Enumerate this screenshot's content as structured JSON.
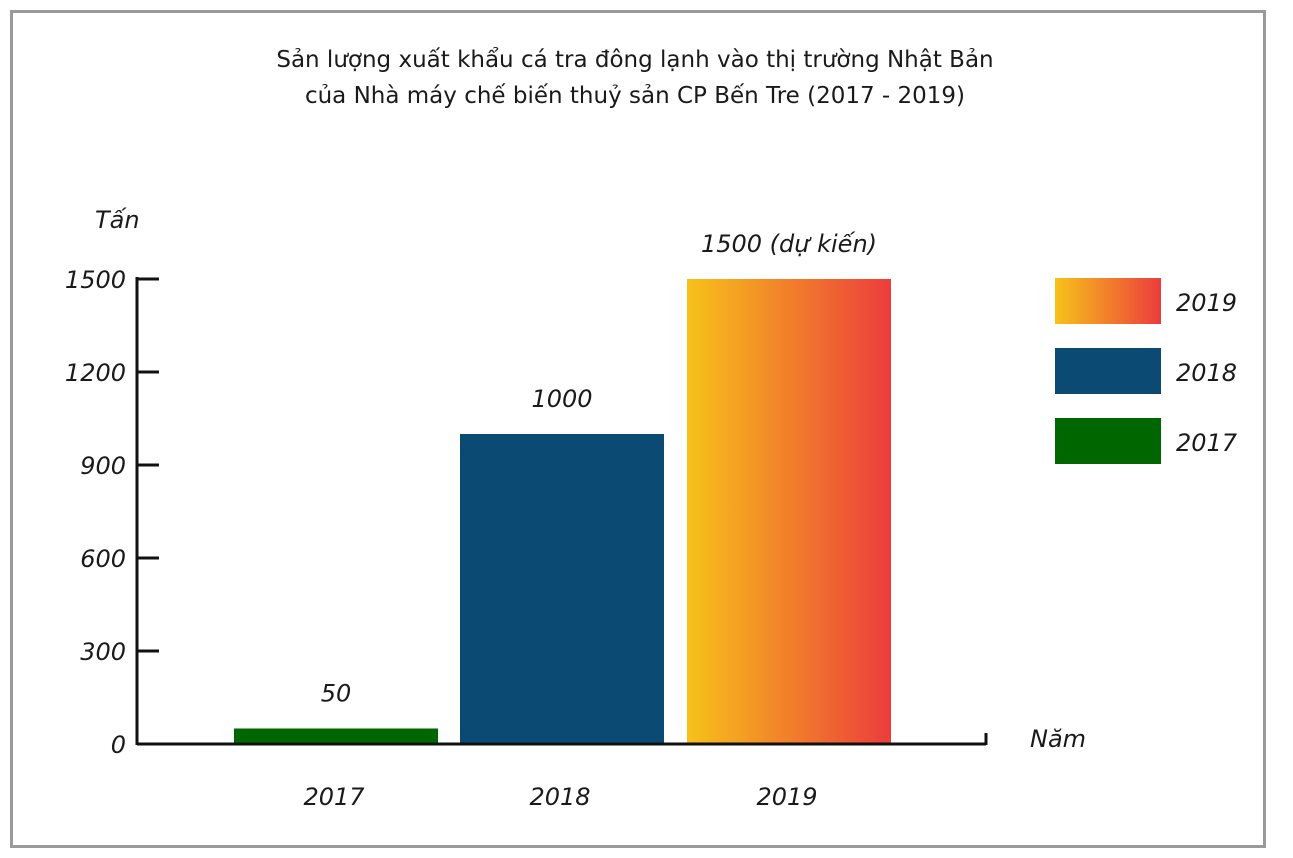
{
  "chart_data": {
    "type": "bar",
    "title": [
      "Sản lượng xuất khẩu cá tra đông lạnh vào thị trường Nhật Bản",
      "của Nhà máy chế biến thuỷ sản CP Bến Tre (2017 - 2019)"
    ],
    "xlabel": "Năm",
    "ylabel": "Tấn",
    "ylim": [
      0,
      1500
    ],
    "yticks": [
      "0",
      "300",
      "600",
      "900",
      "1200",
      "1500"
    ],
    "categories": [
      "2017",
      "2018",
      "2019"
    ],
    "values": [
      50,
      1000,
      1500
    ],
    "data_labels": [
      "50",
      "1000",
      "1500 (dự kiến)"
    ],
    "colors": [
      "#006600",
      "#0a4a73",
      "gradient:#f7c21a-#ec3c3c"
    ],
    "legend": {
      "placement": "right",
      "entries": [
        {
          "label": "2019",
          "color": "gradient:#f7c21a-#ec3c3c"
        },
        {
          "label": "2018",
          "color": "#0a4a73"
        },
        {
          "label": "2017",
          "color": "#006600"
        }
      ]
    },
    "grid": false
  }
}
